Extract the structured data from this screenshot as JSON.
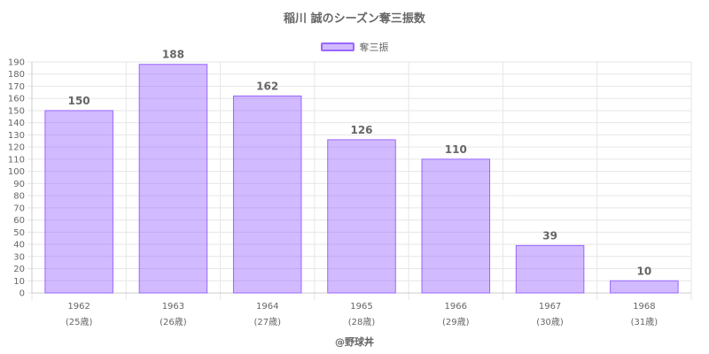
{
  "title": "稲川 誠のシーズン奪三振数",
  "credit": "@野球丼",
  "colors": {
    "bar_fill": "rgba(153,102,255,0.45)",
    "bar_border": "#9966ff",
    "grid": "#e6e6e6",
    "text": "#666666"
  },
  "chart_data": {
    "type": "bar",
    "categories": [
      "1962",
      "1963",
      "1964",
      "1965",
      "1966",
      "1967",
      "1968"
    ],
    "category_sublabels": [
      "(25歳)",
      "(26歳)",
      "(27歳)",
      "(28歳)",
      "(29歳)",
      "(30歳)",
      "(31歳)"
    ],
    "series": [
      {
        "name": "奪三振",
        "values": [
          150,
          188,
          162,
          126,
          110,
          39,
          10
        ]
      }
    ],
    "ylim": [
      0,
      190
    ],
    "ytick_step": 10,
    "grid": true,
    "legend": "top-center",
    "data_labels": true
  }
}
